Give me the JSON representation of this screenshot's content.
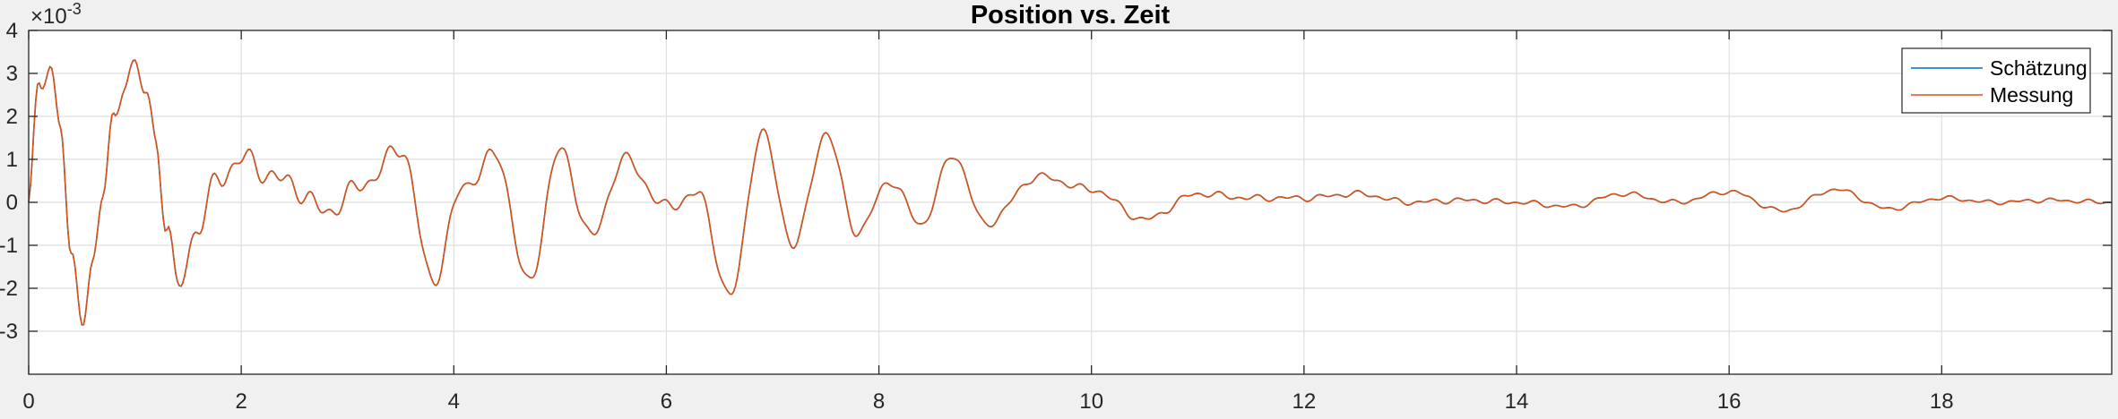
{
  "chart_data": {
    "type": "line",
    "title": "Position vs. Zeit",
    "xlabel": "",
    "ylabel": "",
    "xlim": [
      0,
      19.6
    ],
    "ylim": [
      -4,
      4
    ],
    "y_exponent_label": "×10",
    "y_exponent_power": "-3",
    "xticks": [
      0,
      2,
      4,
      6,
      8,
      10,
      12,
      14,
      16,
      18
    ],
    "xtick_labels": [
      "0",
      "2",
      "4",
      "6",
      "8",
      "10",
      "12",
      "14",
      "16",
      "18"
    ],
    "yticks": [
      -3,
      -2,
      -1,
      0,
      1,
      2,
      3,
      4
    ],
    "ytick_labels": [
      "-3",
      "-2",
      "-1",
      "0",
      "1",
      "2",
      "3",
      "4"
    ],
    "grid": true,
    "legend_position": "top-right",
    "series": [
      {
        "name": "Schätzung",
        "color": "#0072BD",
        "x": [
          0,
          0.1,
          0.2,
          0.3,
          0.4,
          0.5,
          0.6,
          0.7,
          0.8,
          0.9,
          1.0,
          1.1,
          1.2,
          1.3,
          1.4,
          1.6,
          1.8,
          2.0,
          2.4,
          2.8,
          3.2,
          3.5,
          3.8,
          4.1,
          4.4,
          4.7,
          5.0,
          5.3,
          5.6,
          6.0,
          6.3,
          6.6,
          6.9,
          7.2,
          7.5,
          7.8,
          8.1,
          8.4,
          8.7,
          9.0,
          9.5,
          10.0,
          10.5,
          11.0,
          11.5,
          12.0,
          12.5,
          13.0,
          13.5,
          14.0,
          14.5,
          15.0,
          15.5,
          16.0,
          16.5,
          17.0,
          17.5,
          18.0,
          18.5,
          19.0,
          19.6
        ],
        "values": [
          0,
          2.6,
          3.2,
          2.0,
          -1.6,
          -2.6,
          -1.4,
          0.2,
          1.8,
          3.0,
          3.1,
          2.5,
          1.5,
          -0.6,
          -2.0,
          -0.5,
          0.6,
          1.0,
          0.5,
          -0.2,
          0.5,
          1.3,
          -1.8,
          0.4,
          1.1,
          -1.9,
          1.2,
          -0.8,
          1.0,
          -0.1,
          0.2,
          -2.2,
          1.6,
          -1.0,
          1.6,
          -0.7,
          0.5,
          -0.5,
          1.1,
          -0.5,
          0.6,
          0.3,
          -0.4,
          0.2,
          0.1,
          0.1,
          0.2,
          0.0,
          0.05,
          0.0,
          -0.1,
          0.2,
          0.0,
          0.25,
          -0.2,
          0.3,
          -0.15,
          0.1,
          0.0,
          0.05,
          0.0
        ]
      },
      {
        "name": "Messung",
        "color": "#D95319",
        "x": [
          0,
          0.1,
          0.2,
          0.3,
          0.4,
          0.5,
          0.6,
          0.7,
          0.8,
          0.9,
          1.0,
          1.1,
          1.2,
          1.3,
          1.4,
          1.6,
          1.8,
          2.0,
          2.4,
          2.8,
          3.2,
          3.5,
          3.8,
          4.1,
          4.4,
          4.7,
          5.0,
          5.3,
          5.6,
          6.0,
          6.3,
          6.6,
          6.9,
          7.2,
          7.5,
          7.8,
          8.1,
          8.4,
          8.7,
          9.0,
          9.5,
          10.0,
          10.5,
          11.0,
          11.5,
          12.0,
          12.5,
          13.0,
          13.5,
          14.0,
          14.5,
          15.0,
          15.5,
          16.0,
          16.5,
          17.0,
          17.5,
          18.0,
          18.5,
          19.0,
          19.6
        ],
        "values": [
          0,
          2.6,
          3.2,
          2.0,
          -1.6,
          -2.6,
          -1.4,
          0.2,
          1.8,
          3.0,
          3.1,
          2.5,
          1.5,
          -0.6,
          -2.0,
          -0.5,
          0.6,
          1.0,
          0.5,
          -0.2,
          0.5,
          1.3,
          -1.8,
          0.4,
          1.1,
          -1.9,
          1.2,
          -0.8,
          1.0,
          -0.1,
          0.2,
          -2.2,
          1.6,
          -1.0,
          1.6,
          -0.7,
          0.5,
          -0.5,
          1.1,
          -0.5,
          0.6,
          0.3,
          -0.4,
          0.2,
          0.1,
          0.1,
          0.2,
          0.0,
          0.05,
          0.0,
          -0.1,
          0.2,
          0.0,
          0.25,
          -0.2,
          0.3,
          -0.15,
          0.1,
          0.0,
          0.05,
          0.0
        ]
      }
    ]
  },
  "colors": {
    "figure_bg": "#f0f0f0",
    "axes_bg": "#ffffff",
    "axis_color": "#262626",
    "grid_color": "#dfdfdf"
  }
}
